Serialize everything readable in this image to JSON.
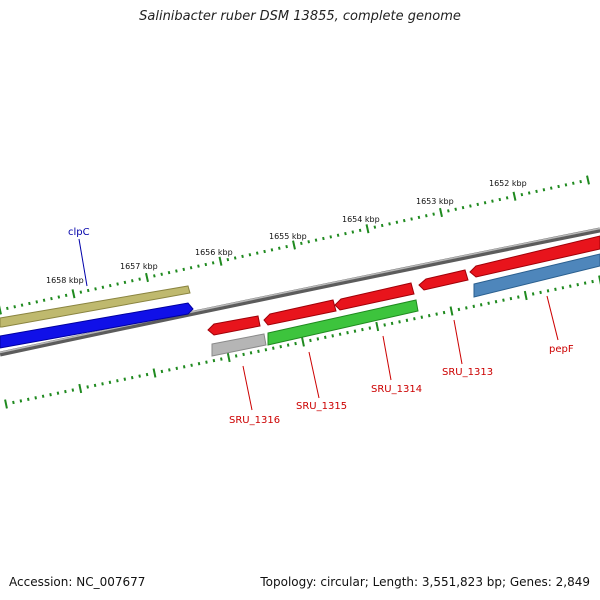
{
  "title": "Salinibacter ruber DSM 13855, complete genome",
  "accession_text": "Accession: NC_007677",
  "summary_text": "Topology: circular; Length: 3,551,823 bp; Genes: 2,849",
  "colors": {
    "backbone": "#7a7a7a",
    "tick": "#1f8a1f",
    "red_gene": "#e8141c",
    "red_label": "#cc0000",
    "olive_gene": "#bfb96e",
    "blue_gene": "#1010e8",
    "green_gene": "#3dc43d",
    "gray_gene": "#b5b5b5",
    "steel_gene": "#4e86bb",
    "blue_label": "#0000aa"
  },
  "scale_labels": [
    "1658 kbp",
    "1657 kbp",
    "1656 kbp",
    "1655 kbp",
    "1654 kbp",
    "1653 kbp",
    "1652 kbp"
  ],
  "gene_labels": [
    {
      "text": "clpC",
      "color": "blue_label"
    },
    {
      "text": "SRU_1316",
      "color": "red_label"
    },
    {
      "text": "SRU_1315",
      "color": "red_label"
    },
    {
      "text": "SRU_1314",
      "color": "red_label"
    },
    {
      "text": "SRU_1313",
      "color": "red_label"
    },
    {
      "text": "pepF",
      "color": "red_label"
    }
  ]
}
